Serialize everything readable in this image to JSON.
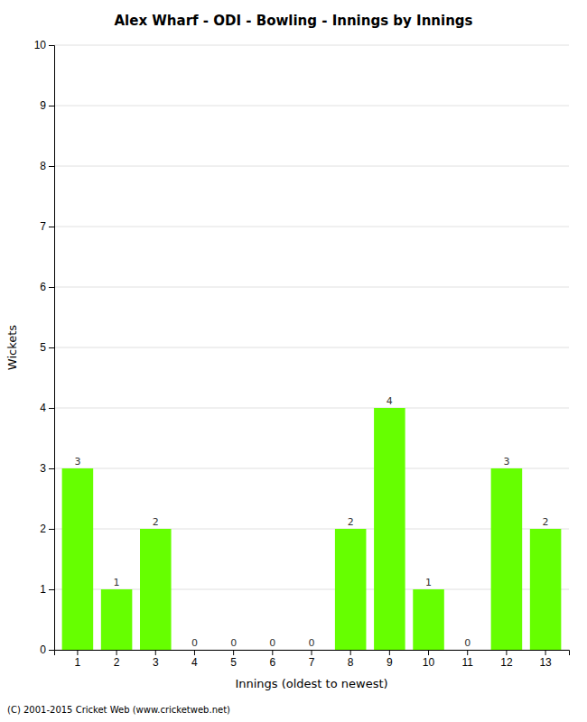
{
  "chart_data": {
    "type": "bar",
    "title": "Alex Wharf - ODI - Bowling - Innings by Innings",
    "xlabel": "Innings (oldest to newest)",
    "ylabel": "Wickets",
    "categories": [
      1,
      2,
      3,
      4,
      5,
      6,
      7,
      8,
      9,
      10,
      11,
      12,
      13
    ],
    "values": [
      3,
      1,
      2,
      0,
      0,
      0,
      0,
      2,
      4,
      1,
      0,
      3,
      2
    ],
    "color": "#66ff00",
    "ylim": [
      0,
      10
    ],
    "yticks": [
      0,
      1,
      2,
      3,
      4,
      5,
      6,
      7,
      8,
      9,
      10
    ],
    "grid": true,
    "data_labels": true,
    "footer": "(C) 2001-2015 Cricket Web (www.cricketweb.net)"
  }
}
